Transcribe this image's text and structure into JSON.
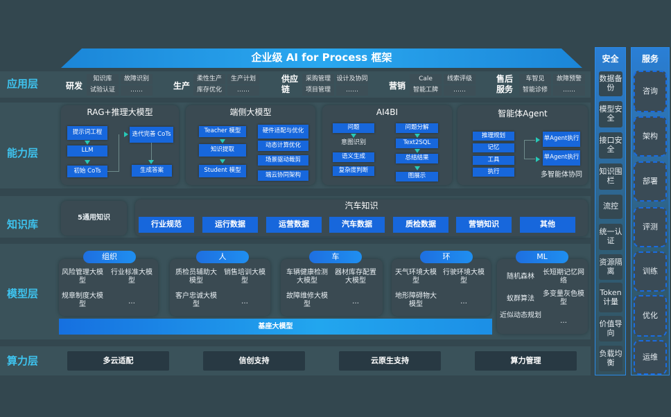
{
  "title": "企业级 AI for Process 框架",
  "layers": [
    "应用层",
    "能力层",
    "知识库",
    "模型层",
    "算力层"
  ],
  "app": [
    {
      "name": "研发",
      "items": [
        "知识库",
        "故障识别",
        "试验认证",
        "……"
      ]
    },
    {
      "name": "生产",
      "items": [
        "柔性生产",
        "生产计划",
        "库存优化",
        "……"
      ]
    },
    {
      "name": "供应链",
      "items": [
        "采购管理",
        "设计及协同",
        "项目管理",
        "……"
      ]
    },
    {
      "name": "营销",
      "items": [
        "Cale",
        "线索评级",
        "智能工牌",
        "……"
      ]
    },
    {
      "name": "售后服务",
      "items": [
        "车智见",
        "故障预警",
        "智能诊修",
        "……"
      ]
    }
  ],
  "capability": {
    "rag": {
      "title": "RAG+推理大模型",
      "items": [
        "提示词工程",
        "LLM",
        "初始 CoTs",
        "迭代完善 CoTs",
        "生成答案"
      ]
    },
    "edge": {
      "title": "端侧大模型",
      "items": [
        "Teacher 模型",
        "知识提取",
        "Student 模型",
        "硬件适配与优化",
        "动态计算优化",
        "场景驱动裁剪",
        "端云协同架构"
      ]
    },
    "ai4bi": {
      "title": "AI4BI",
      "items": [
        "问题",
        "意图识别",
        "语义生成",
        "复杂度判断",
        "问题分解",
        "Text2SQL",
        "总结结果",
        "图展示"
      ]
    },
    "agent": {
      "title": "智能体Agent",
      "items": [
        "推理规划",
        "记忆",
        "工具",
        "执行",
        "单Agent执行",
        "单Agent执行",
        "多智能体协同"
      ]
    }
  },
  "knowledge": {
    "general": "5通用知识",
    "auto_title": "汽车知识",
    "items": [
      "行业规范",
      "运行数据",
      "运营数据",
      "汽车数据",
      "质检数据",
      "营销知识",
      "其他"
    ]
  },
  "models": [
    {
      "name": "组织",
      "items": [
        "风险管理大模型",
        "行业标准大模型",
        "规章制度大模型",
        "…"
      ]
    },
    {
      "name": "人",
      "items": [
        "质检员辅助大模型",
        "销售培训大模型",
        "客户忠诚大模型",
        "…"
      ]
    },
    {
      "name": "车",
      "items": [
        "车辆健康检测大模型",
        "器材库存配置大模型",
        "故障维修大模型",
        "…"
      ]
    },
    {
      "name": "环",
      "items": [
        "天气环境大模型",
        "行驶环境大模型",
        "地形障碍物大模型",
        "…"
      ]
    },
    {
      "name": "ML",
      "items": [
        "随机森林",
        "长短期记忆网络",
        "蚁群算法",
        "多变量灰色模型",
        "近似动态规划",
        "…"
      ]
    }
  ],
  "base_model": "基座大模型",
  "compute": [
    "多云适配",
    "信创支持",
    "云原生支持",
    "算力管理"
  ],
  "security": {
    "title": "安全",
    "items": [
      "数据备份",
      "模型安全",
      "接口安全",
      "知识围栏",
      "流控",
      "统一认证",
      "资源隔离",
      "Token计量",
      "价值导向",
      "负载均衡"
    ]
  },
  "service": {
    "title": "服务",
    "items": [
      "咨询",
      "架构",
      "部署",
      "评测",
      "训练",
      "优化",
      "运维"
    ]
  }
}
